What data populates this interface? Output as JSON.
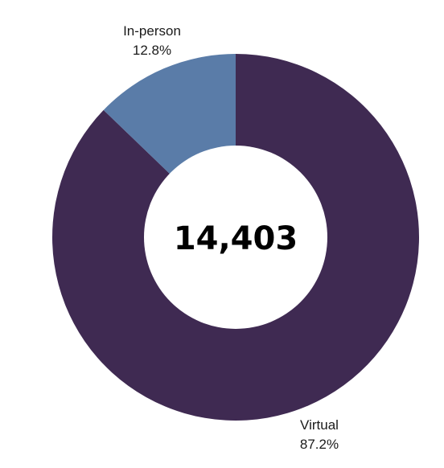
{
  "chart_data": {
    "type": "pie",
    "subtype": "donut",
    "center_label": "14,403",
    "start": "top",
    "direction": "counterclockwise-from-top",
    "slices": [
      {
        "label": "Virtual",
        "value_text": "87.2%",
        "value": 87.2,
        "color": "#3f2a52"
      },
      {
        "label": "In-person",
        "value_text": "12.8%",
        "value": 12.8,
        "color": "#5a7ca8"
      }
    ]
  }
}
